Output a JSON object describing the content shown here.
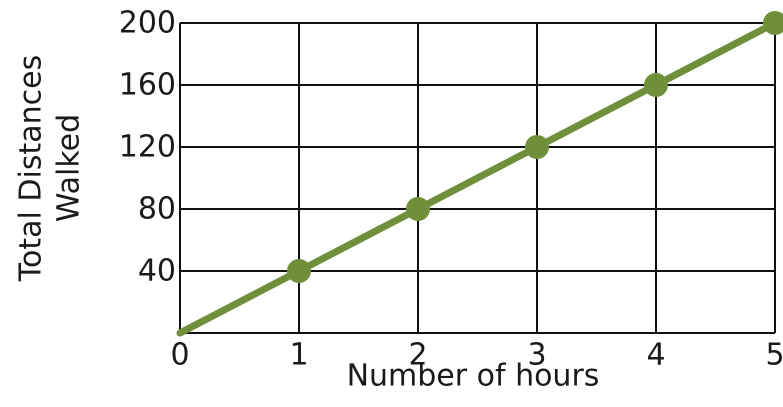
{
  "chart_data": {
    "type": "line",
    "title": "",
    "xlabel": "Number of hours",
    "ylabel_lines": [
      "Total Distances",
      "Walked"
    ],
    "x": [
      1,
      2,
      3,
      4,
      5
    ],
    "y": [
      40,
      80,
      120,
      160,
      200
    ],
    "line_origin": [
      0,
      0
    ],
    "xlim": [
      0,
      5
    ],
    "ylim": [
      0,
      200
    ],
    "x_ticks": [
      "0",
      "1",
      "2",
      "3",
      "4",
      "5"
    ],
    "y_ticks": [
      "40",
      "80",
      "120",
      "160",
      "200"
    ],
    "grid": true,
    "colors": {
      "series": "#6f8f3a",
      "grid": "#111111"
    }
  }
}
